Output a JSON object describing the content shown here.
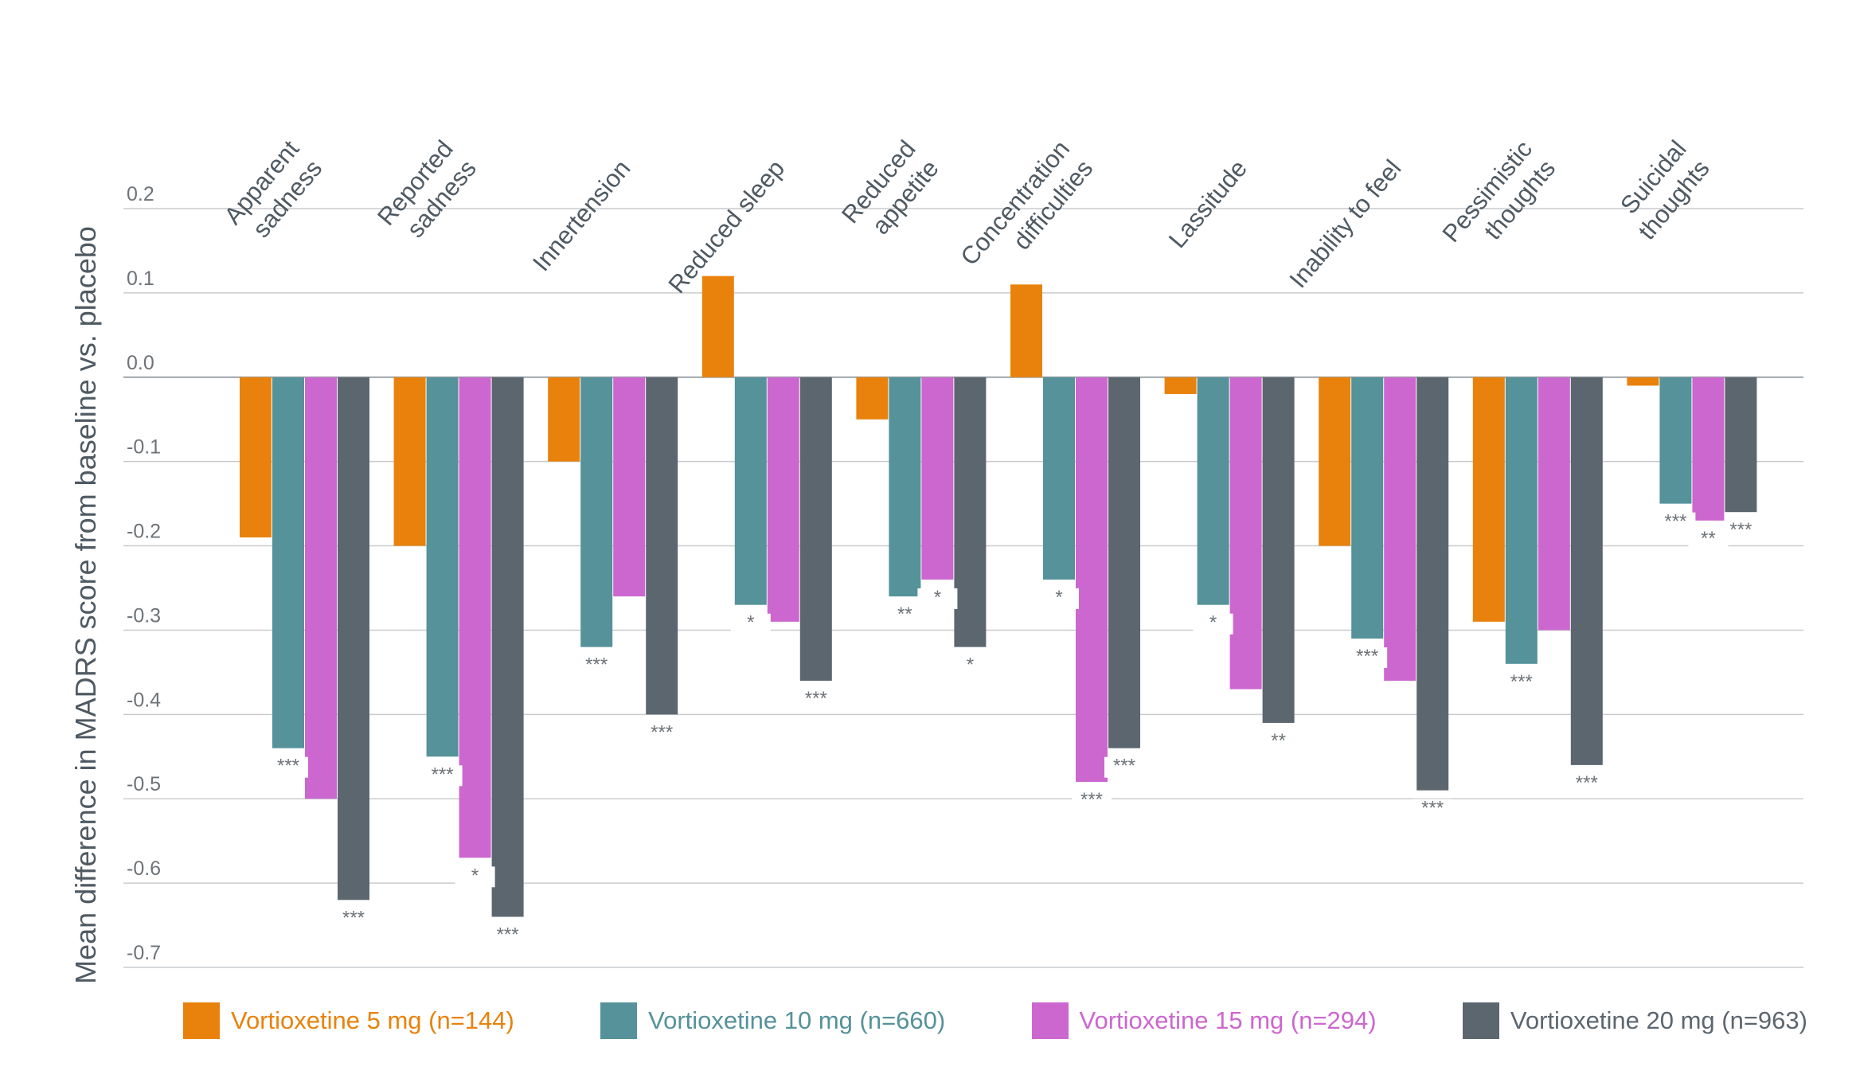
{
  "chart_data": {
    "type": "bar",
    "title": "",
    "xlabel": "",
    "ylabel": "Mean difference in MADRS score from baseline vs. placebo",
    "ylim": [
      -0.7,
      0.2
    ],
    "yticks": [
      "0.2",
      "0.1",
      "0.0",
      "-0.1",
      "-0.2",
      "-0.3",
      "-0.4",
      "-0.5",
      "-0.6",
      "-0.7"
    ],
    "grid": true,
    "legend_position": "bottom",
    "categories": [
      [
        "Apparent",
        "sadness"
      ],
      [
        "Reported",
        "sadness"
      ],
      [
        "Innertension"
      ],
      [
        "Reduced sleep"
      ],
      [
        "Reduced",
        "appetite"
      ],
      [
        "Concentration",
        "difficulties"
      ],
      [
        "Lassitude"
      ],
      [
        "Inability to feel"
      ],
      [
        "Pessimistic",
        "thoughts"
      ],
      [
        "Suicidal",
        "thoughts"
      ]
    ],
    "series": [
      {
        "name": "Vortioxetine 5 mg (n=144)",
        "color": "#e8820c",
        "values": [
          -0.19,
          -0.2,
          -0.1,
          0.12,
          -0.05,
          0.11,
          -0.02,
          -0.2,
          -0.29,
          -0.01
        ],
        "significance": [
          "",
          "",
          "",
          "",
          "",
          "",
          "",
          "",
          "",
          ""
        ]
      },
      {
        "name": "Vortioxetine 10 mg (n=660)",
        "color": "#55929a",
        "values": [
          -0.44,
          -0.45,
          -0.32,
          -0.27,
          -0.26,
          -0.24,
          -0.27,
          -0.31,
          -0.34,
          -0.15
        ],
        "significance": [
          "***",
          "***",
          "***",
          "*",
          "**",
          "*",
          "*",
          "***",
          "***",
          "***"
        ]
      },
      {
        "name": "Vortioxetine 15 mg (n=294)",
        "color": "#cc67cf",
        "values": [
          -0.5,
          -0.57,
          -0.26,
          -0.29,
          -0.24,
          -0.48,
          -0.37,
          -0.36,
          -0.3,
          -0.17
        ],
        "significance": [
          "",
          "*",
          "",
          "",
          "*",
          "***",
          "",
          "",
          "",
          "**"
        ]
      },
      {
        "name": "Vortioxetine 20 mg (n=963)",
        "color": "#5c666f",
        "values": [
          -0.62,
          -0.64,
          -0.4,
          -0.36,
          -0.32,
          -0.44,
          -0.41,
          -0.49,
          -0.46,
          -0.16
        ],
        "significance": [
          "***",
          "***",
          "***",
          "***",
          "*",
          "***",
          "**",
          "***",
          "***",
          "***"
        ]
      }
    ]
  }
}
